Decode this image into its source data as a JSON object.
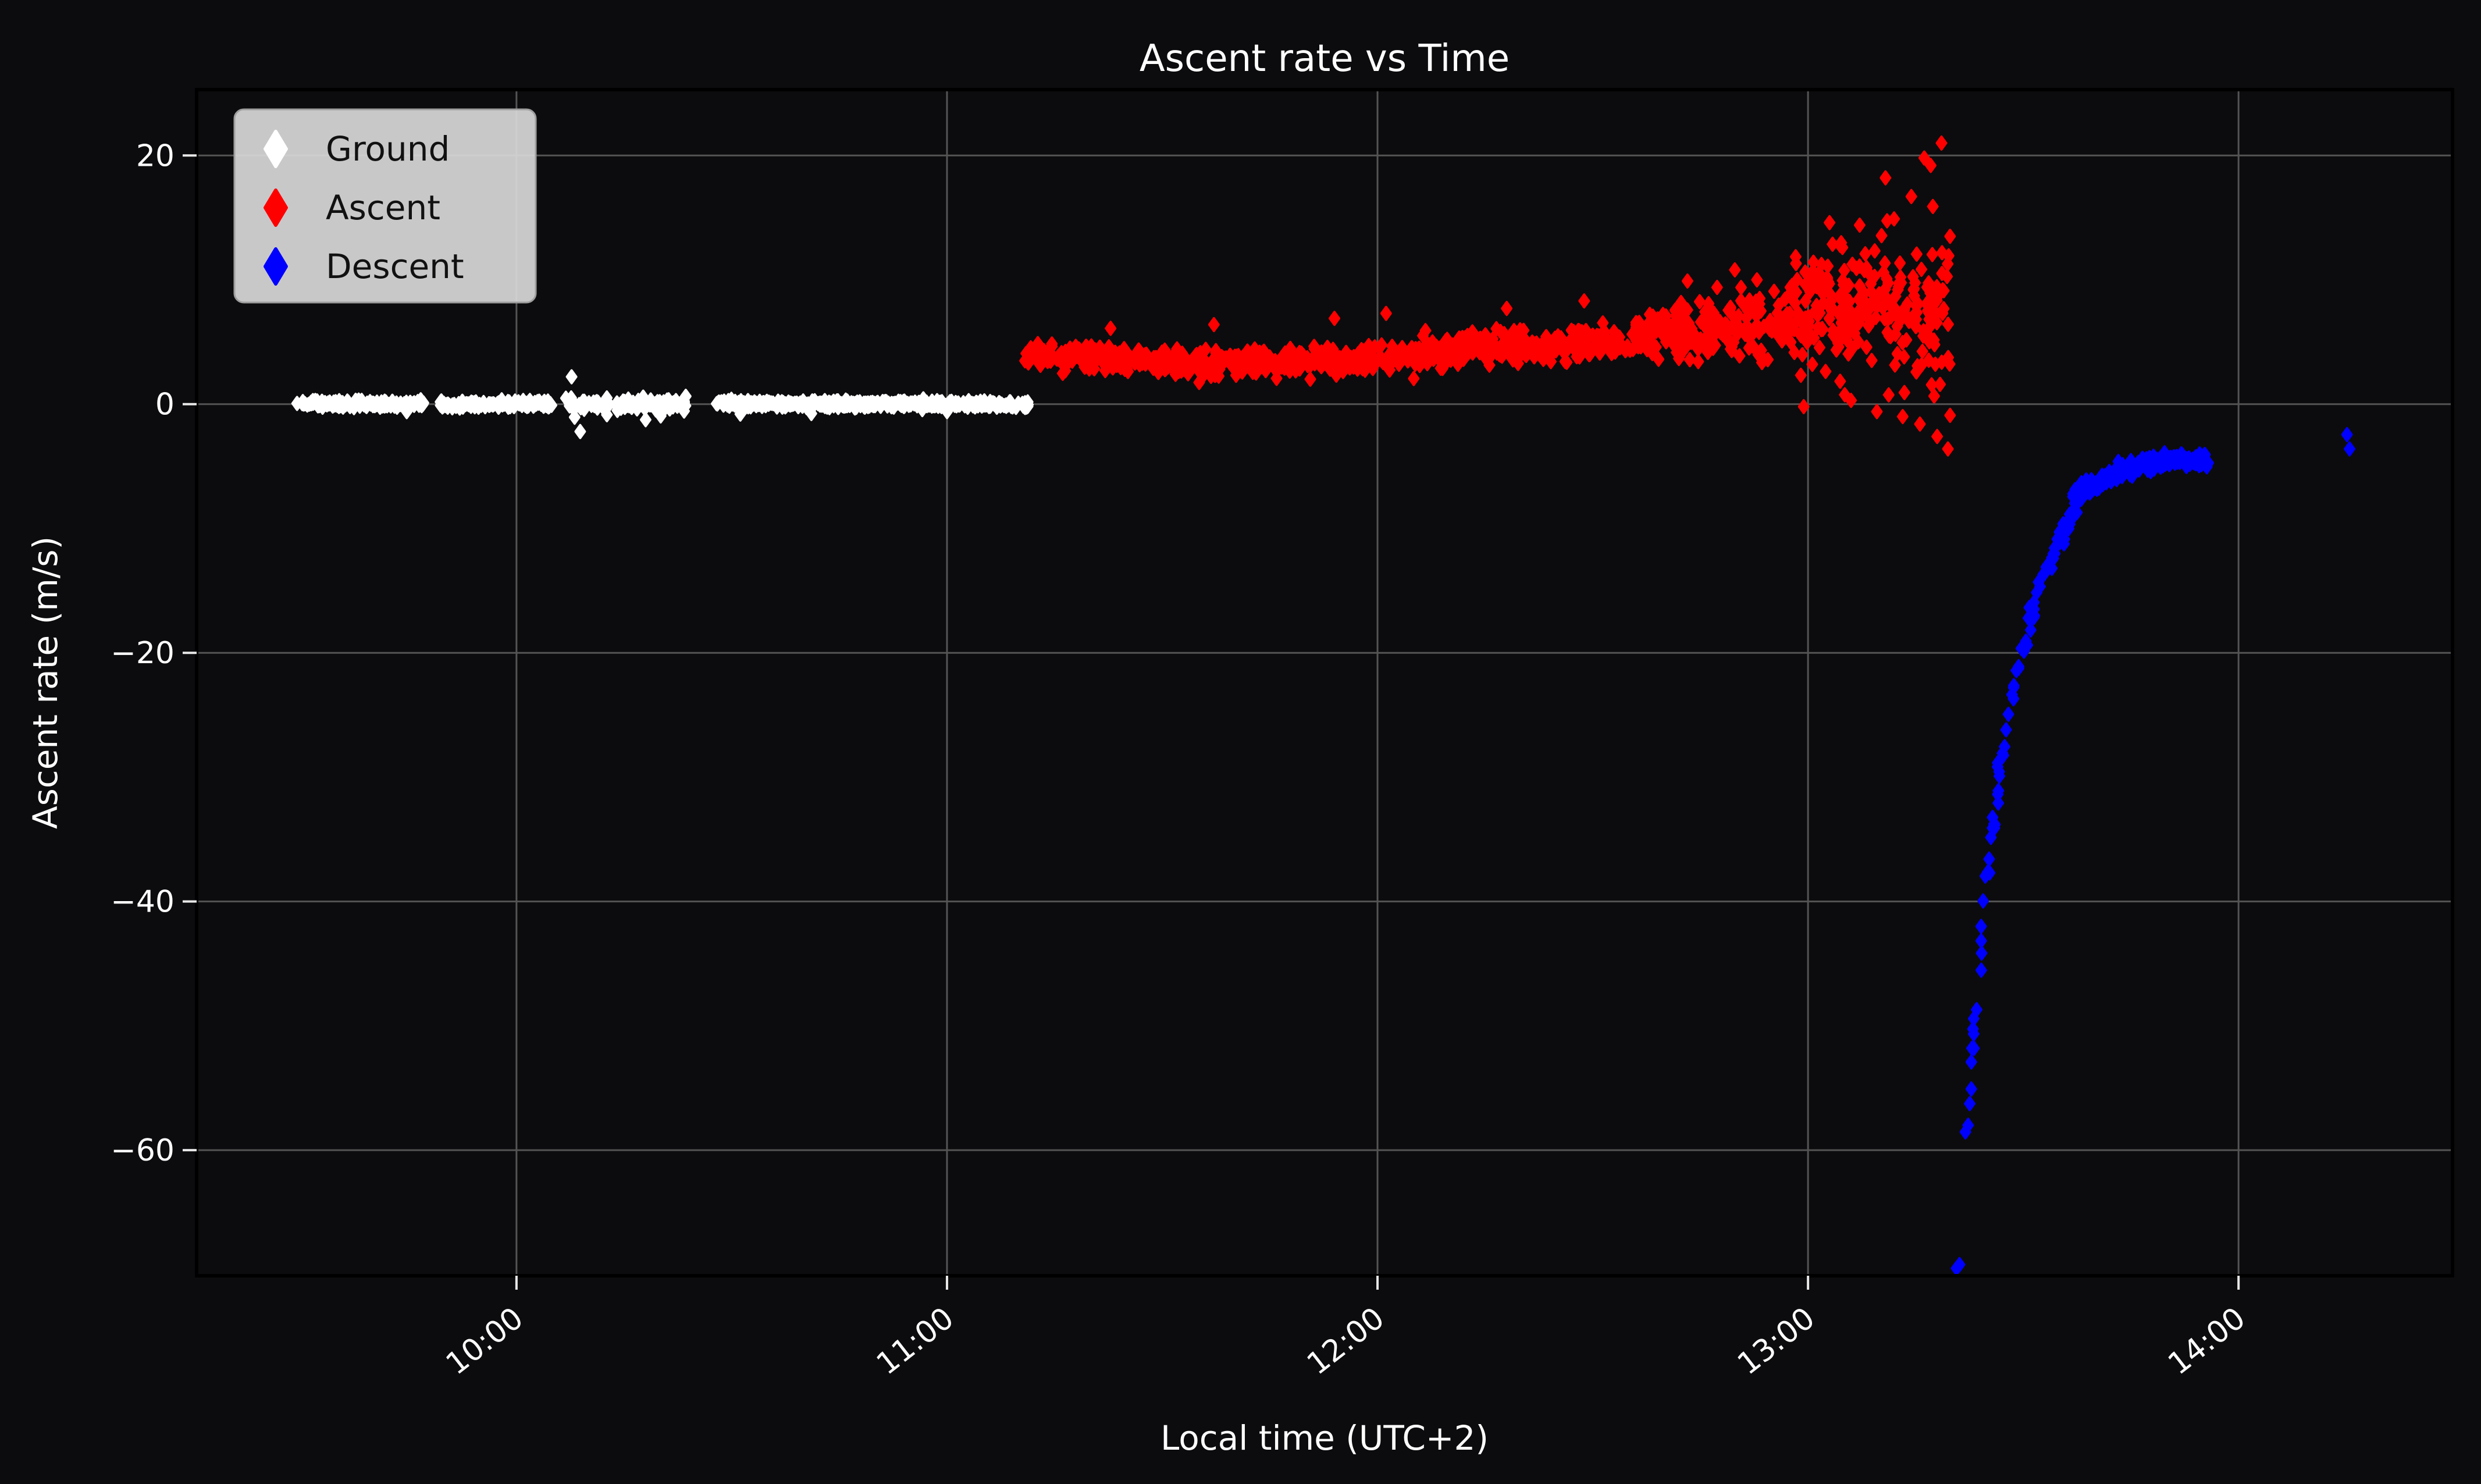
{
  "figure": {
    "bg_color": "#0c0c0e",
    "text_color": "#ffffff"
  },
  "chart_data": {
    "type": "scatter",
    "title": "Ascent rate vs Time",
    "xlabel": "Local time (UTC+2)",
    "ylabel": "Ascent rate (m/s)",
    "xlim_hours": [
      9.257,
      14.497
    ],
    "ylim": [
      -70.1,
      25.3
    ],
    "x_ticks": [
      {
        "t": 10,
        "label": "10:00"
      },
      {
        "t": 11,
        "label": "11:00"
      },
      {
        "t": 12,
        "label": "12:00"
      },
      {
        "t": 13,
        "label": "13:00"
      },
      {
        "t": 14,
        "label": "14:00"
      }
    ],
    "y_ticks": [
      {
        "v": 20,
        "label": "20"
      },
      {
        "v": 0,
        "label": "0"
      },
      {
        "v": -20,
        "label": "−20"
      },
      {
        "v": -40,
        "label": "−40"
      },
      {
        "v": -60,
        "label": "−60"
      }
    ],
    "grid": true,
    "grid_color": "#545454",
    "tick_color": "#e8e8e8",
    "spine_color": "#000000",
    "marker": "diamond",
    "legend": {
      "position": "upper-left",
      "bg": "#d9d9d9",
      "border": "#9e9e9e",
      "text_color": "#111111",
      "entries": [
        {
          "label": "Ground",
          "color": "#ffffff"
        },
        {
          "label": "Ascent",
          "color": "#ff0000"
        },
        {
          "label": "Descent",
          "color": "#0000ff"
        }
      ]
    },
    "series": [
      {
        "name": "Ground",
        "color": "#ffffff",
        "seed": 101,
        "segments": [
          [
            9.49,
            9.795,
            150,
            0.05,
            0.0,
            0.13,
            0.13,
            -0.5,
            0.55
          ],
          [
            9.82,
            10.085,
            140,
            0.0,
            0.0,
            0.13,
            0.15,
            -0.5,
            0.55
          ],
          [
            10.11,
            10.215,
            42,
            0.0,
            0.0,
            0.22,
            0.22,
            -0.75,
            0.6
          ],
          [
            10.23,
            10.395,
            95,
            0.0,
            0.0,
            0.22,
            0.22,
            -0.9,
            0.7
          ],
          [
            10.46,
            11.19,
            400,
            0.02,
            0.0,
            0.13,
            0.14,
            -0.55,
            0.55
          ]
        ],
        "outliers": [
          [
            10.128,
            2.2
          ],
          [
            10.135,
            -1.05
          ],
          [
            10.148,
            -2.2
          ],
          [
            10.21,
            -0.85
          ],
          [
            10.3,
            -1.25
          ],
          [
            10.335,
            -0.95
          ],
          [
            10.52,
            -0.8
          ],
          [
            10.685,
            -0.75
          ],
          [
            9.745,
            -0.6
          ],
          [
            11.0,
            -0.6
          ]
        ]
      },
      {
        "name": "Ascent",
        "color": "#ff0000",
        "seed": 202,
        "segments": [
          [
            11.18,
            11.5,
            170,
            4.0,
            3.4,
            0.5,
            0.5,
            1.9,
            6.3
          ],
          [
            11.5,
            12.1,
            310,
            3.35,
            3.7,
            0.55,
            0.55,
            1.6,
            6.6
          ],
          [
            12.1,
            12.6,
            260,
            4.1,
            5.3,
            0.6,
            0.65,
            2.2,
            8.0
          ],
          [
            12.6,
            12.95,
            210,
            5.5,
            6.8,
            0.9,
            1.3,
            2.2,
            11.0
          ],
          [
            12.95,
            13.33,
            270,
            7.0,
            7.8,
            2.2,
            2.9,
            0.6,
            16.0
          ]
        ],
        "outliers": [
          [
            11.38,
            6.1
          ],
          [
            11.62,
            6.4
          ],
          [
            11.9,
            6.9
          ],
          [
            12.02,
            7.3
          ],
          [
            12.3,
            7.7
          ],
          [
            12.48,
            8.3
          ],
          [
            12.72,
            9.9
          ],
          [
            12.83,
            10.8
          ],
          [
            13.05,
            14.6
          ],
          [
            13.08,
            12.6
          ],
          [
            13.12,
            14.4
          ],
          [
            13.18,
            18.2
          ],
          [
            13.2,
            14.9
          ],
          [
            13.24,
            16.7
          ],
          [
            13.27,
            19.8
          ],
          [
            13.285,
            19.2
          ],
          [
            13.31,
            21.0
          ],
          [
            13.29,
            15.9
          ],
          [
            13.33,
            13.5
          ],
          [
            13.16,
            -0.6
          ],
          [
            13.22,
            -1.0
          ],
          [
            13.26,
            -1.6
          ],
          [
            13.3,
            -2.6
          ],
          [
            13.325,
            -3.6
          ],
          [
            13.33,
            -0.9
          ],
          [
            12.99,
            -0.2
          ],
          [
            13.1,
            0.3
          ]
        ]
      },
      {
        "name": "Descent",
        "color": "#0000ff",
        "seed": 303,
        "segments": [
          [
            13.365,
            13.405,
            14,
            -60.0,
            -43.0,
            0.9,
            0.9,
            -70,
            -40
          ],
          [
            13.4,
            13.445,
            16,
            -42.0,
            -30.5,
            0.9,
            0.9,
            -46,
            -27
          ],
          [
            13.44,
            13.49,
            16,
            -29.5,
            -21.0,
            0.7,
            0.7,
            -33,
            -19
          ],
          [
            13.49,
            13.535,
            14,
            -20.5,
            -15.2,
            0.6,
            0.6,
            -23,
            -13.5
          ],
          [
            13.535,
            13.585,
            16,
            -14.8,
            -11.3,
            0.5,
            0.5,
            -16.5,
            -10
          ],
          [
            13.585,
            13.625,
            18,
            -11.0,
            -8.3,
            0.45,
            0.45,
            -12.5,
            -7.2
          ],
          [
            13.615,
            13.72,
            95,
            -7.5,
            -5.4,
            0.3,
            0.3,
            -8.6,
            -4.6
          ],
          [
            13.72,
            13.86,
            115,
            -5.3,
            -4.35,
            0.28,
            0.26,
            -6.2,
            -3.9
          ],
          [
            13.86,
            13.93,
            55,
            -4.35,
            -4.6,
            0.26,
            0.26,
            -5.4,
            -3.9
          ]
        ],
        "outliers": [
          [
            13.345,
            -69.5
          ],
          [
            13.352,
            -69.2
          ],
          [
            14.252,
            -2.45
          ],
          [
            14.258,
            -3.6
          ]
        ]
      }
    ]
  }
}
